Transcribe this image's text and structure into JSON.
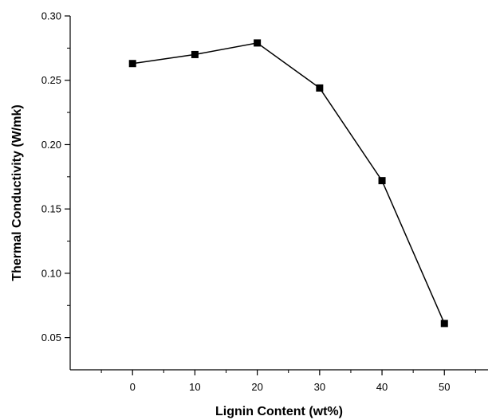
{
  "chart_data": {
    "type": "line",
    "title": "",
    "xlabel": "Lignin Content (wt%)",
    "ylabel": "Thermal Conductivity (W/mk)",
    "x": [
      0,
      10,
      20,
      30,
      40,
      50
    ],
    "series": [
      {
        "values": [
          0.263,
          0.27,
          0.279,
          0.244,
          0.172,
          0.061
        ]
      }
    ],
    "xlim": [
      -10,
      57
    ],
    "ylim": [
      0.025,
      0.3
    ],
    "xticks": [
      "0",
      "10",
      "20",
      "30",
      "40",
      "50"
    ],
    "yticks": [
      "0.05",
      "0.10",
      "0.15",
      "0.20",
      "0.25",
      "0.30"
    ],
    "marker": "square",
    "line_color": "#000000",
    "grid": false,
    "legend": "none"
  }
}
